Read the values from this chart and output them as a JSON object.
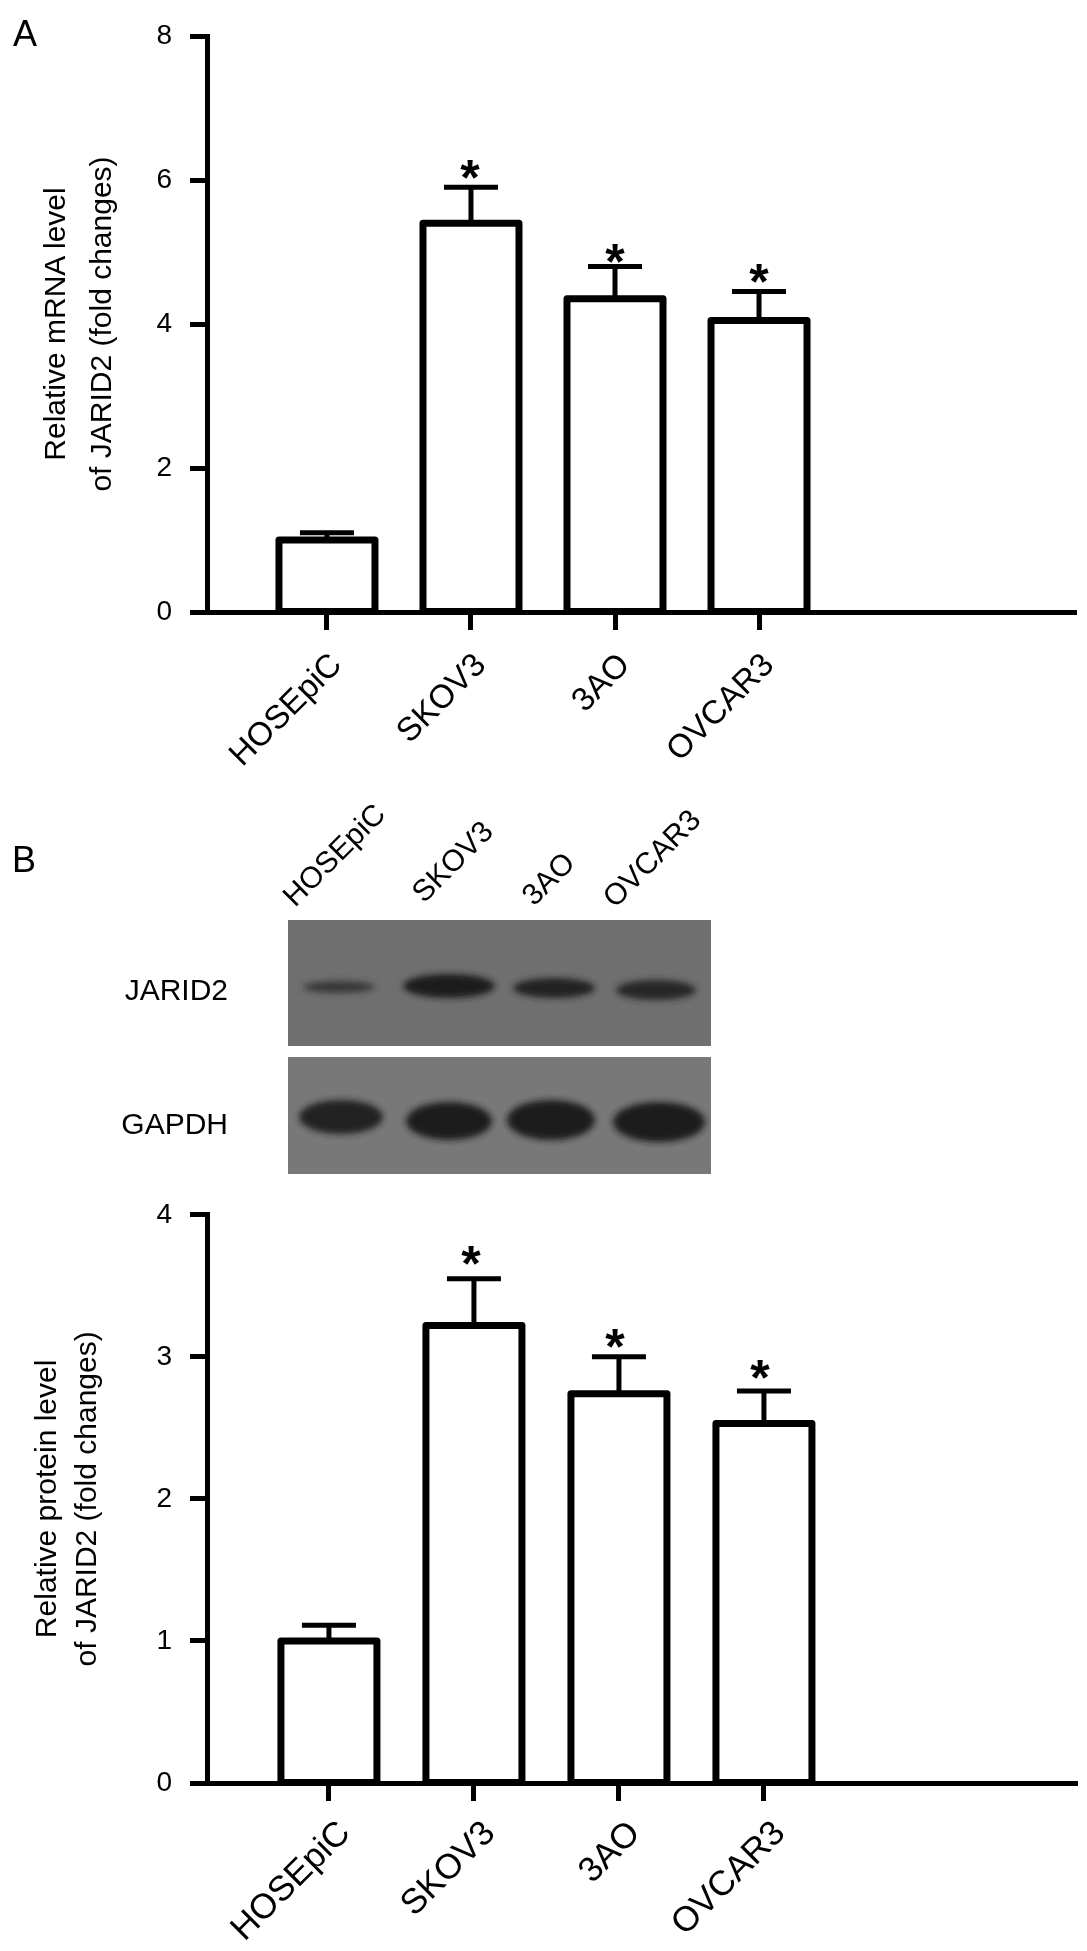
{
  "chart_data": [
    {
      "type": "bar",
      "title": "A",
      "ylabel": "Relative mRNA level\nof JARID2 (fold changes)",
      "categories": [
        "HOSEpiC",
        "SKOV3",
        "3AO",
        "OVCAR3"
      ],
      "values": [
        1.0,
        5.4,
        4.35,
        4.05
      ],
      "errors": [
        [
          1.0,
          1.1
        ],
        [
          5.4,
          5.9
        ],
        [
          4.35,
          4.8
        ],
        [
          4.05,
          4.45
        ]
      ],
      "color": "#000000",
      "ylim": [
        0,
        8
      ],
      "yticks": [
        0,
        2,
        4,
        6,
        8
      ],
      "annotations": [
        "*",
        "*",
        "*"
      ]
    },
    {
      "type": "other",
      "title": "B",
      "categories": [
        "HOSEpiC",
        "SKOV3",
        "3AO",
        "OVCAR3"
      ],
      "y_categories": [
        "JARID2",
        "GAPDH"
      ]
    },
    {
      "type": "bar",
      "ylabel": "Relative protein level\nof JARID2 (fold changes)",
      "categories": [
        "HOSEpiC",
        "SKOV3",
        "3AO",
        "OVCAR3"
      ],
      "values": [
        1.0,
        3.22,
        2.74,
        2.53
      ],
      "errors": [
        [
          1.0,
          1.11
        ],
        [
          3.22,
          3.55
        ],
        [
          2.74,
          3.0
        ],
        [
          2.53,
          2.76
        ]
      ],
      "color": "#000000",
      "ylim": [
        0,
        4
      ],
      "yticks": [
        0,
        1,
        2,
        3,
        4
      ],
      "annotations": [
        "*",
        "*",
        "*"
      ]
    }
  ]
}
